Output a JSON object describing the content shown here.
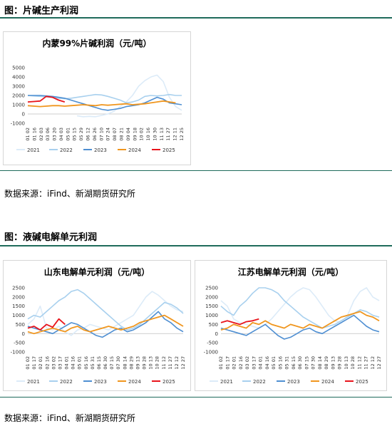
{
  "figures": [
    {
      "caption": "图：片碱生产利润",
      "source": "数据来源：iFind、新湖期货研究所"
    },
    {
      "caption": "图：液碱电解单元利润",
      "source": "数据来源：iFind、新湖期货研究所"
    }
  ],
  "colors": {
    "2021": "#dcebf8",
    "2022": "#a8d0ee",
    "2023": "#4f8fd2",
    "2024": "#f0961e",
    "2025": "#e8141c",
    "accent_rule": "#1f6b5b"
  },
  "chart_data": [
    {
      "type": "line",
      "title": "内蒙99%片碱利润（元/吨）",
      "ylim": [
        -1000,
        5000
      ],
      "yticks": [
        -1000,
        0,
        1000,
        2000,
        3000,
        4000,
        5000
      ],
      "x": [
        "01-02",
        "01-16",
        "01-30",
        "02-13",
        "02-27",
        "03-13",
        "03-27",
        "04-10",
        "04-24",
        "05-08",
        "05-22",
        "06-05",
        "06-19",
        "07-03",
        "07-17",
        "07-31",
        "08-14",
        "08-28",
        "09-11",
        "09-25",
        "10-09",
        "10-23",
        "11-06",
        "11-20",
        "12-04",
        "12-18"
      ],
      "xticks": [
        "01 02",
        "01 16",
        "02 03",
        "03 06",
        "03 20",
        "04 03",
        "05 01",
        "05 15",
        "05 29",
        "06 12",
        "06 26",
        "07 10",
        "07 24",
        "08 07",
        "08 21",
        "09 04",
        "09 18",
        "10 02",
        "10 16",
        "10 30",
        "11 13",
        "11 27",
        "12 11",
        "12 25"
      ],
      "series": [
        {
          "name": "2021",
          "values": [
            null,
            null,
            null,
            null,
            null,
            null,
            null,
            null,
            -200,
            -300,
            -250,
            -300,
            -150,
            0,
            300,
            800,
            1300,
            2000,
            3000,
            3600,
            4000,
            4200,
            3500,
            1800,
            800,
            400
          ]
        },
        {
          "name": "2022",
          "values": [
            2000,
            1950,
            1900,
            1850,
            1800,
            1700,
            1650,
            1700,
            1800,
            1900,
            2000,
            2100,
            2050,
            1900,
            1700,
            1500,
            1200,
            1300,
            1500,
            1900,
            2000,
            1950,
            2000,
            2100,
            2000,
            2000
          ]
        },
        {
          "name": "2023",
          "values": [
            2000,
            2000,
            2000,
            1950,
            1900,
            1800,
            1700,
            1500,
            1300,
            1100,
            900,
            700,
            500,
            400,
            500,
            600,
            800,
            900,
            1000,
            1200,
            1500,
            1800,
            1600,
            1200,
            1100,
            1000
          ]
        },
        {
          "name": "2024",
          "values": [
            900,
            850,
            800,
            850,
            900,
            900,
            850,
            900,
            950,
            1000,
            950,
            900,
            1000,
            950,
            1000,
            1050,
            1100,
            1000,
            1050,
            1100,
            1200,
            1300,
            1400,
            1300,
            1200,
            null
          ]
        },
        {
          "name": "2025",
          "values": [
            1300,
            1350,
            1400,
            1900,
            1800,
            1500,
            1300,
            null,
            null,
            null,
            null,
            null,
            null,
            null,
            null,
            null,
            null,
            null,
            null,
            null,
            null,
            null,
            null,
            null,
            null,
            null
          ]
        }
      ],
      "legend": [
        "2021",
        "2022",
        "2023",
        "2024",
        "2025"
      ]
    },
    {
      "type": "line",
      "title": "山东电解单元利润（元/吨）",
      "ylim": [
        -1000,
        2500
      ],
      "yticks": [
        -1000,
        -500,
        0,
        500,
        1000,
        1500,
        2000,
        2500
      ],
      "x": [
        "01-02",
        "01-16",
        "01-30",
        "02-13",
        "02-27",
        "03-13",
        "03-27",
        "04-10",
        "04-24",
        "05-08",
        "05-22",
        "06-05",
        "06-19",
        "07-03",
        "07-17",
        "07-31",
        "08-14",
        "08-28",
        "09-11",
        "09-25",
        "10-09",
        "10-23",
        "11-06",
        "11-20",
        "12-04",
        "12-18"
      ],
      "xticks": [
        "01 02",
        "01 17",
        "02 01",
        "02 16",
        "03 02",
        "03 17",
        "04 01",
        "04 16",
        "05 01",
        "05 16",
        "05 31",
        "06 15",
        "06 30",
        "07 15",
        "07 30",
        "08 14",
        "08 29",
        "09 13",
        "09 28",
        "10 13",
        "10 28",
        "11 12",
        "11 27",
        "12 12",
        "12 27"
      ],
      "series": [
        {
          "name": "2021",
          "values": [
            500,
            800,
            1500,
            300,
            200,
            400,
            100,
            -100,
            200,
            300,
            500,
            400,
            300,
            200,
            400,
            600,
            800,
            1000,
            1500,
            2000,
            2300,
            2100,
            1800,
            1500,
            1300,
            1200
          ]
        },
        {
          "name": "2022",
          "values": [
            800,
            1000,
            900,
            1200,
            1500,
            1800,
            2000,
            2300,
            2400,
            2200,
            1900,
            1600,
            1300,
            1000,
            700,
            400,
            200,
            300,
            500,
            800,
            1100,
            1400,
            1700,
            1600,
            1400,
            1100
          ]
        },
        {
          "name": "2023",
          "values": [
            400,
            300,
            200,
            100,
            0,
            200,
            400,
            600,
            500,
            300,
            100,
            -100,
            -200,
            0,
            200,
            300,
            100,
            200,
            400,
            600,
            900,
            1200,
            800,
            600,
            300,
            100
          ]
        },
        {
          "name": "2024",
          "values": [
            100,
            0,
            100,
            200,
            300,
            200,
            100,
            300,
            400,
            200,
            100,
            200,
            300,
            400,
            300,
            200,
            300,
            400,
            600,
            700,
            800,
            900,
            1000,
            800,
            600,
            400
          ]
        },
        {
          "name": "2025",
          "values": [
            300,
            400,
            200,
            500,
            350,
            800,
            500,
            null,
            null,
            null,
            null,
            null,
            null,
            null,
            null,
            null,
            null,
            null,
            null,
            null,
            null,
            null,
            null,
            null,
            null,
            null
          ]
        }
      ],
      "legend": [
        "2021",
        "2022",
        "2023",
        "2024",
        "2025"
      ]
    },
    {
      "type": "line",
      "title": "江苏电解单元利润（元/吨）",
      "ylim": [
        -1000,
        2500
      ],
      "yticks": [
        -1000,
        -500,
        0,
        500,
        1000,
        1500,
        2000,
        2500
      ],
      "x": [
        "01-02",
        "01-16",
        "01-30",
        "02-13",
        "02-27",
        "03-13",
        "03-27",
        "04-10",
        "04-24",
        "05-08",
        "05-22",
        "06-05",
        "06-19",
        "07-03",
        "07-17",
        "07-31",
        "08-14",
        "08-28",
        "09-11",
        "09-25",
        "10-09",
        "10-23",
        "11-06",
        "11-20",
        "12-04",
        "12-18"
      ],
      "xticks": [
        "01 02",
        "01 17",
        "02 01",
        "02 16",
        "03 02",
        "03 17",
        "04 01",
        "04 16",
        "05 01",
        "05 16",
        "05 31",
        "06 15",
        "06 30",
        "07 15",
        "07 30",
        "08 14",
        "08 29",
        "09 13",
        "09 28",
        "10 13",
        "10 28",
        "11 12",
        "11 27",
        "12 12",
        "12 27"
      ],
      "series": [
        {
          "name": "2021",
          "values": [
            1800,
            1500,
            800,
            600,
            500,
            400,
            300,
            500,
            800,
            1200,
            1600,
            2000,
            2300,
            2500,
            2400,
            2000,
            1500,
            1000,
            700,
            600,
            1000,
            1800,
            2300,
            2500,
            2000,
            1800
          ]
        },
        {
          "name": "2022",
          "values": [
            1500,
            1200,
            1000,
            1500,
            1800,
            2200,
            2500,
            2500,
            2400,
            2200,
            1800,
            1500,
            1200,
            900,
            700,
            500,
            300,
            400,
            500,
            700,
            900,
            1100,
            1300,
            1200,
            1000,
            900
          ]
        },
        {
          "name": "2023",
          "values": [
            300,
            200,
            100,
            0,
            -100,
            100,
            300,
            500,
            200,
            -100,
            -300,
            -200,
            0,
            200,
            300,
            100,
            0,
            200,
            400,
            600,
            800,
            1000,
            700,
            400,
            200,
            100
          ]
        },
        {
          "name": "2024",
          "values": [
            200,
            300,
            500,
            400,
            300,
            600,
            500,
            700,
            500,
            400,
            300,
            500,
            400,
            300,
            500,
            400,
            300,
            500,
            700,
            900,
            1000,
            1100,
            1200,
            1000,
            900,
            700
          ]
        },
        {
          "name": "2025",
          "values": [
            600,
            700,
            600,
            500,
            650,
            700,
            800,
            null,
            null,
            null,
            null,
            null,
            null,
            null,
            null,
            null,
            null,
            null,
            null,
            null,
            null,
            null,
            null,
            null,
            null,
            null
          ]
        }
      ],
      "legend": [
        "2021",
        "2022",
        "2023",
        "2024",
        "2025"
      ]
    }
  ]
}
